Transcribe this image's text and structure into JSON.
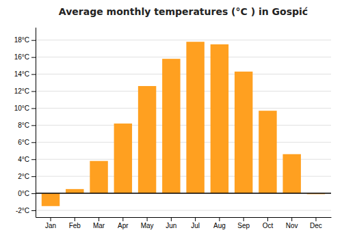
{
  "chart_data": {
    "type": "bar",
    "title": "Average monthly temperatures (°C ) in Gospić",
    "categories": [
      "Jan",
      "Feb",
      "Mar",
      "Apr",
      "May",
      "Jun",
      "Jul",
      "Aug",
      "Sep",
      "Oct",
      "Nov",
      "Dec"
    ],
    "values": [
      -1.5,
      0.5,
      3.8,
      8.2,
      12.6,
      15.8,
      17.8,
      17.5,
      14.3,
      9.7,
      4.6,
      -0.1
    ],
    "color": "#FFA020",
    "ylim": [
      -2.8,
      19.5
    ],
    "yticks": [
      {
        "value": -2,
        "label": "-2°C"
      },
      {
        "value": 0,
        "label": "0°C"
      },
      {
        "value": 2,
        "label": "2°C"
      },
      {
        "value": 4,
        "label": "4°C"
      },
      {
        "value": 6,
        "label": "6°C"
      },
      {
        "value": 8,
        "label": "8°C"
      },
      {
        "value": 10,
        "label": "10°C"
      },
      {
        "value": 12,
        "label": "12°C"
      },
      {
        "value": 14,
        "label": "14°C"
      },
      {
        "value": 16,
        "label": "16°C"
      },
      {
        "value": 18,
        "label": "18°C"
      }
    ],
    "grid": true
  }
}
